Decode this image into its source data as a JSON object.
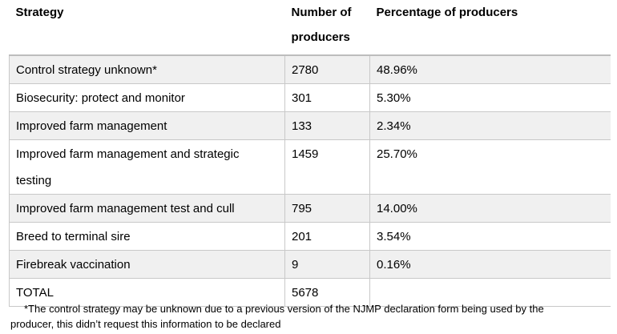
{
  "table": {
    "headers": [
      "Strategy",
      "Number of producers",
      "Percentage of producers"
    ],
    "rows": [
      {
        "strategy": "Control strategy unknown*",
        "number": "2780",
        "percentage": "48.96%"
      },
      {
        "strategy": "Biosecurity: protect and monitor",
        "number": "301",
        "percentage": "5.30%"
      },
      {
        "strategy": "Improved farm management",
        "number": "133",
        "percentage": "2.34%"
      },
      {
        "strategy": "Improved farm management and strategic testing",
        "number": "1459",
        "percentage": "25.70%"
      },
      {
        "strategy": "Improved farm management test and cull",
        "number": "795",
        "percentage": "14.00%"
      },
      {
        "strategy": "Breed to terminal sire",
        "number": "201",
        "percentage": "3.54%"
      },
      {
        "strategy": "Firebreak vaccination",
        "number": "9",
        "percentage": "0.16%"
      },
      {
        "strategy": "TOTAL",
        "number": "5678",
        "percentage": ""
      }
    ]
  },
  "footnote": {
    "line1": "*The control strategy may be unknown due to a previous version of the NJMP declaration form being used by the",
    "line2": "producer, this didn’t request this information to be declared"
  }
}
